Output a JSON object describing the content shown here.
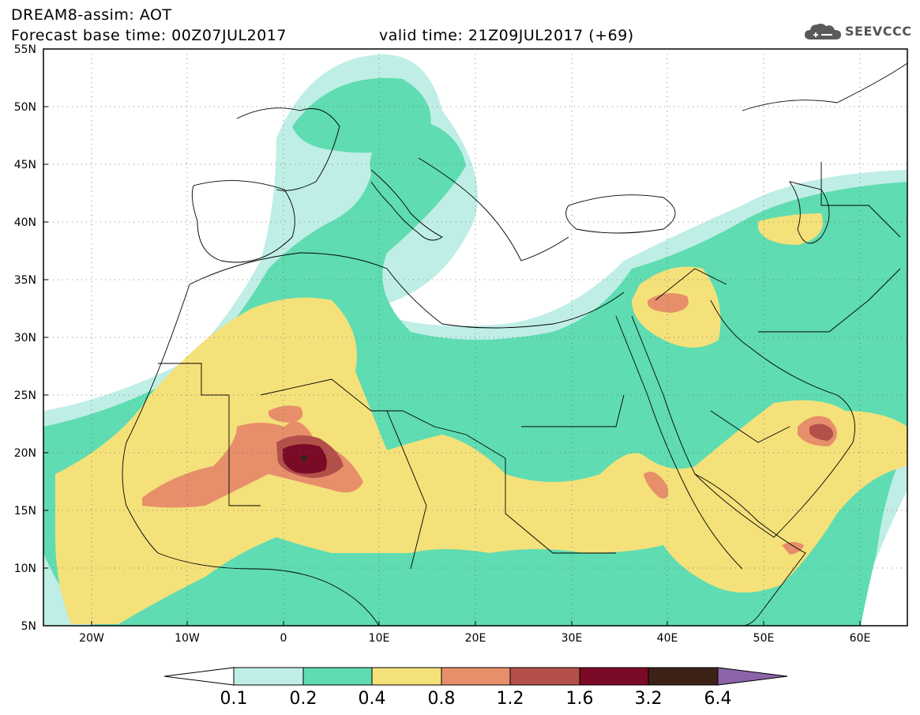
{
  "header": {
    "title": "DREAM8-assim: AOT",
    "base_time": "Forecast base time: 00Z07JUL2017",
    "valid_time": "valid time: 21Z09JUL2017 (+69)"
  },
  "logo": {
    "text": "SEEVCCC",
    "icon": "cloud-icon"
  },
  "axes": {
    "lat_labels": [
      "55N",
      "50N",
      "45N",
      "40N",
      "35N",
      "30N",
      "25N",
      "20N",
      "15N",
      "10N",
      "5N"
    ],
    "lon_labels": [
      "20W",
      "10W",
      "0",
      "10E",
      "20E",
      "30E",
      "40E",
      "50E",
      "60E"
    ],
    "lat_range": [
      5,
      55
    ],
    "lon_range": [
      -25,
      65
    ]
  },
  "colorbar": {
    "levels": [
      "0.1",
      "0.2",
      "0.4",
      "0.8",
      "1.2",
      "1.6",
      "3.2",
      "6.4"
    ],
    "colors": [
      "#ffffff",
      "#bfeee6",
      "#5fdcb1",
      "#f4e17a",
      "#e68f6a",
      "#b3504a",
      "#7a0a25",
      "#3c2217",
      "#8b65a8"
    ]
  }
}
